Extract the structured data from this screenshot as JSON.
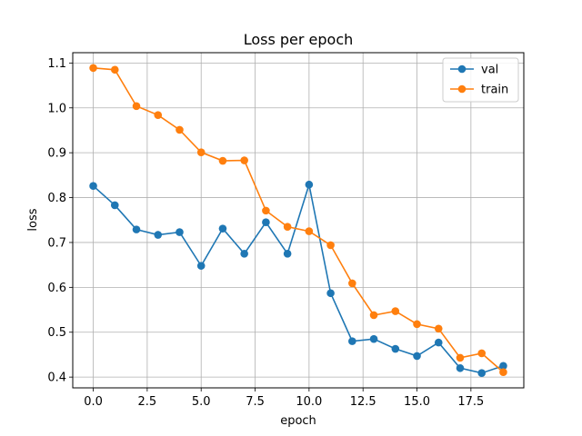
{
  "chart_data": {
    "type": "line",
    "title": "Loss per epoch",
    "xlabel": "epoch",
    "ylabel": "loss",
    "xlim": [
      -0.95,
      19.95
    ],
    "ylim": [
      0.376,
      1.123
    ],
    "xticks": [
      0.0,
      2.5,
      5.0,
      7.5,
      10.0,
      12.5,
      15.0,
      17.5
    ],
    "xtick_labels": [
      "0.0",
      "2.5",
      "5.0",
      "7.5",
      "10.0",
      "12.5",
      "15.0",
      "17.5"
    ],
    "yticks": [
      0.4,
      0.5,
      0.6,
      0.7,
      0.8,
      0.9,
      1.0,
      1.1
    ],
    "ytick_labels": [
      "0.4",
      "0.5",
      "0.6",
      "0.7",
      "0.8",
      "0.9",
      "1.0",
      "1.1"
    ],
    "grid": true,
    "legend_position": "top-right",
    "x": [
      0,
      1,
      2,
      3,
      4,
      5,
      6,
      7,
      8,
      9,
      10,
      11,
      12,
      13,
      14,
      15,
      16,
      17,
      18,
      19
    ],
    "series": [
      {
        "name": "val",
        "color": "#1f77b4",
        "values": [
          0.826,
          0.783,
          0.729,
          0.717,
          0.723,
          0.648,
          0.731,
          0.675,
          0.745,
          0.675,
          0.829,
          0.587,
          0.48,
          0.485,
          0.463,
          0.447,
          0.477,
          0.42,
          0.409,
          0.425
        ]
      },
      {
        "name": "train",
        "color": "#ff7f0e",
        "values": [
          1.089,
          1.085,
          1.004,
          0.984,
          0.951,
          0.901,
          0.882,
          0.883,
          0.771,
          0.735,
          0.725,
          0.694,
          0.609,
          0.538,
          0.547,
          0.518,
          0.508,
          0.443,
          0.453,
          0.411
        ]
      }
    ]
  }
}
